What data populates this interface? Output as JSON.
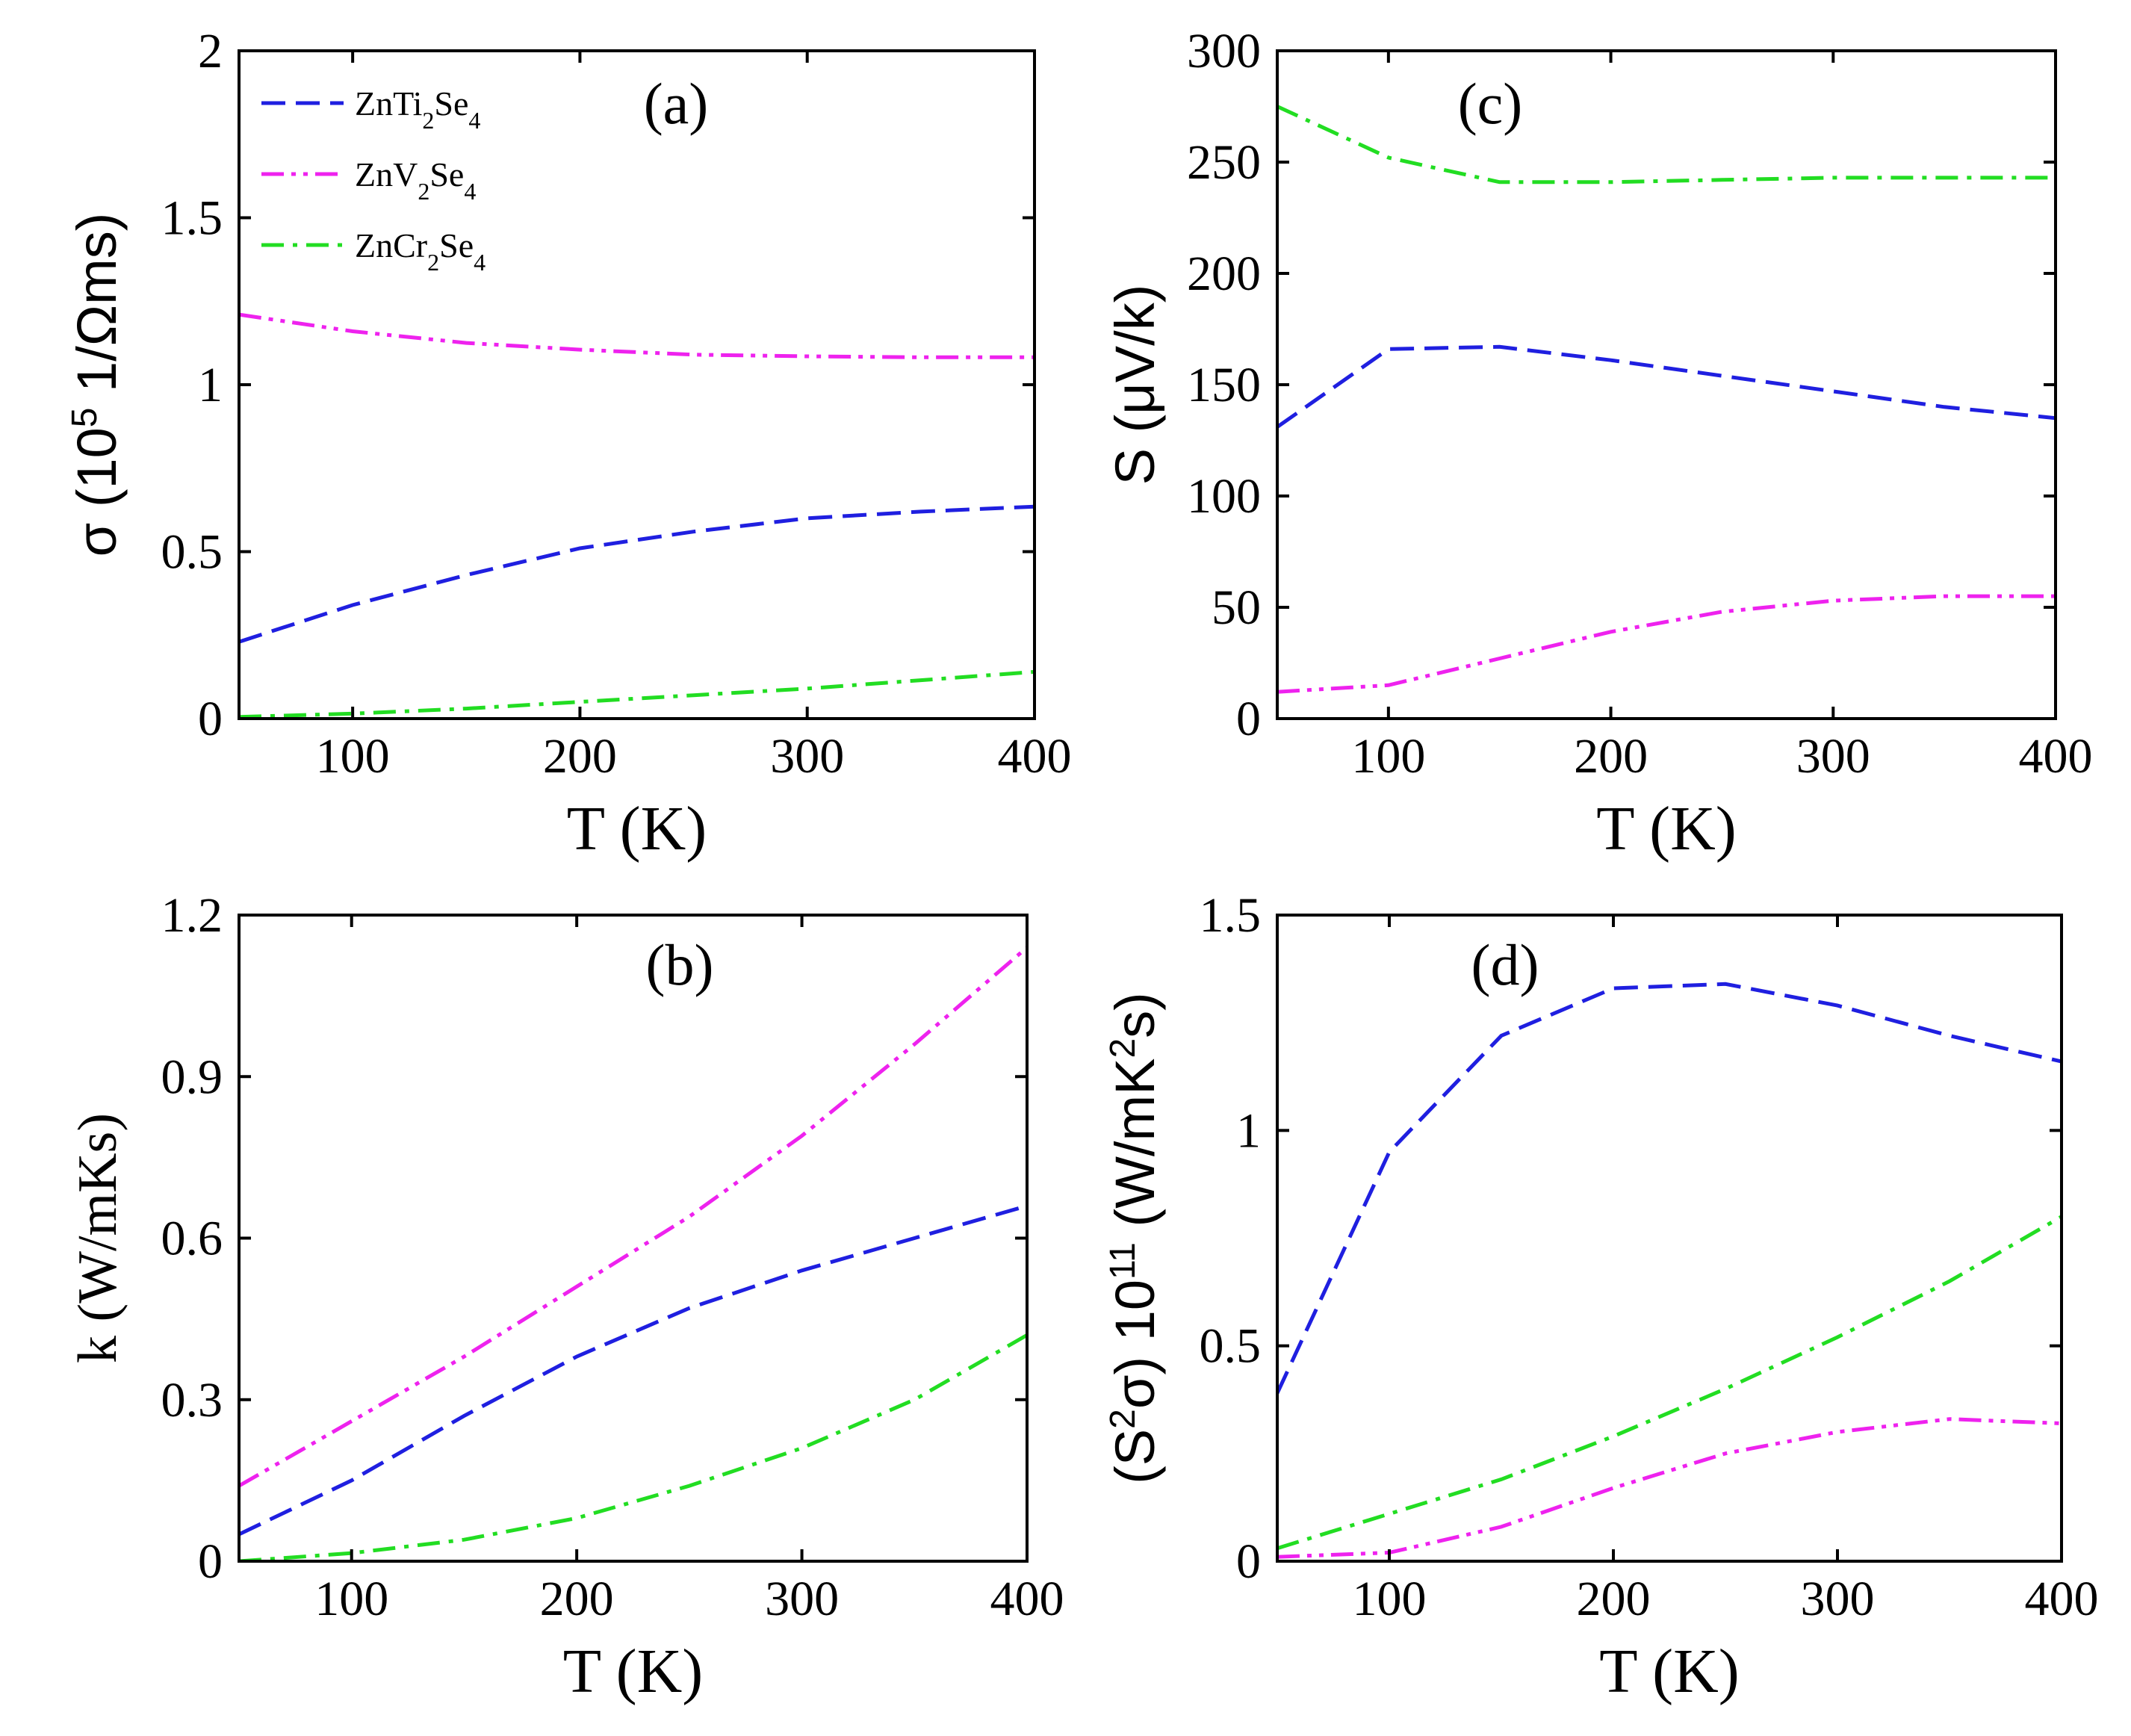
{
  "chart_data": [
    {
      "type": "line",
      "panel_label": "(a)",
      "xlabel": "T (K)",
      "ylabel": {
        "base": "σ (10",
        "exp": "5",
        "rest": " 1/Ωms)"
      },
      "xlim": [
        50,
        400
      ],
      "ylim": [
        0,
        2
      ],
      "xticks": [
        100,
        200,
        300,
        400
      ],
      "xtick_labels": [
        "100",
        "200",
        "300",
        "400"
      ],
      "yticks": [
        0,
        0.5,
        1,
        1.5,
        2
      ],
      "ytick_labels": [
        "0",
        "0.5",
        "1",
        "1.5",
        "2"
      ],
      "legend": {
        "position": "top-left",
        "entries": [
          {
            "parts": [
              "ZnTi",
              "2",
              "Se",
              "4"
            ],
            "color": "#1f1fe0",
            "style": "dash"
          },
          {
            "parts": [
              "ZnV",
              "2",
              "Se",
              "4"
            ],
            "color": "#ee22ee",
            "style": "dashdotdot"
          },
          {
            "parts": [
              "ZnCr",
              "2",
              "Se",
              "4"
            ],
            "color": "#22dd22",
            "style": "dashdot"
          }
        ]
      },
      "series": [
        {
          "name": "ZnTi2Se4",
          "color": "#1f1fe0",
          "style": "dash",
          "x": [
            50,
            100,
            150,
            200,
            250,
            300,
            350,
            400
          ],
          "y": [
            0.23,
            0.34,
            0.43,
            0.51,
            0.56,
            0.6,
            0.62,
            0.635
          ]
        },
        {
          "name": "ZnV2Se4",
          "color": "#ee22ee",
          "style": "dashdotdot",
          "x": [
            50,
            100,
            150,
            200,
            250,
            300,
            350,
            400
          ],
          "y": [
            1.21,
            1.16,
            1.125,
            1.105,
            1.09,
            1.085,
            1.082,
            1.082
          ]
        },
        {
          "name": "ZnCr2Se4",
          "color": "#22dd22",
          "style": "dashdot",
          "x": [
            50,
            100,
            150,
            200,
            250,
            300,
            350,
            400
          ],
          "y": [
            0.005,
            0.015,
            0.03,
            0.05,
            0.07,
            0.09,
            0.115,
            0.14
          ]
        }
      ]
    },
    {
      "type": "line",
      "panel_label": "(b)",
      "xlabel": "T (K)",
      "ylabel": {
        "base": "k (W/mKs)",
        "exp": "",
        "rest": ""
      },
      "xlim": [
        50,
        400
      ],
      "ylim": [
        0,
        1.2
      ],
      "xticks": [
        100,
        200,
        300,
        400
      ],
      "xtick_labels": [
        "100",
        "200",
        "300",
        "400"
      ],
      "yticks": [
        0,
        0.3,
        0.6,
        0.9,
        1.2
      ],
      "ytick_labels": [
        "0",
        "0.3",
        "0.6",
        "0.9",
        "1.2"
      ],
      "series": [
        {
          "name": "ZnTi2Se4",
          "color": "#1f1fe0",
          "style": "dash",
          "x": [
            50,
            100,
            150,
            200,
            250,
            300,
            350,
            400
          ],
          "y": [
            0.05,
            0.15,
            0.27,
            0.38,
            0.47,
            0.54,
            0.6,
            0.66
          ]
        },
        {
          "name": "ZnV2Se4",
          "color": "#ee22ee",
          "style": "dashdotdot",
          "x": [
            50,
            100,
            150,
            200,
            250,
            300,
            350,
            400
          ],
          "y": [
            0.14,
            0.26,
            0.38,
            0.51,
            0.64,
            0.79,
            0.96,
            1.14
          ]
        },
        {
          "name": "ZnCr2Se4",
          "color": "#22dd22",
          "style": "dashdot",
          "x": [
            50,
            100,
            150,
            200,
            250,
            300,
            350,
            400
          ],
          "y": [
            0.0,
            0.015,
            0.04,
            0.08,
            0.14,
            0.21,
            0.3,
            0.42
          ]
        }
      ]
    },
    {
      "type": "line",
      "panel_label": "(c)",
      "xlabel": "T (K)",
      "ylabel": {
        "base": "S (μV/k)",
        "exp": "",
        "rest": ""
      },
      "xlim": [
        50,
        400
      ],
      "ylim": [
        0,
        300
      ],
      "xticks": [
        100,
        200,
        300,
        400
      ],
      "xtick_labels": [
        "100",
        "200",
        "300",
        "400"
      ],
      "yticks": [
        0,
        50,
        100,
        150,
        200,
        250,
        300
      ],
      "ytick_labels": [
        "0",
        "50",
        "100",
        "150",
        "200",
        "250",
        "300"
      ],
      "series": [
        {
          "name": "ZnTi2Se4",
          "color": "#1f1fe0",
          "style": "dash",
          "x": [
            50,
            100,
            150,
            200,
            250,
            300,
            350,
            400
          ],
          "y": [
            131,
            166,
            167,
            161,
            154,
            147,
            140,
            135
          ]
        },
        {
          "name": "ZnV2Se4",
          "color": "#ee22ee",
          "style": "dashdotdot",
          "x": [
            50,
            100,
            150,
            200,
            250,
            300,
            350,
            400
          ],
          "y": [
            12,
            15,
            27,
            39,
            48,
            53,
            55,
            55
          ]
        },
        {
          "name": "ZnCr2Se4",
          "color": "#22dd22",
          "style": "dashdot",
          "x": [
            50,
            100,
            150,
            200,
            250,
            300,
            350,
            400
          ],
          "y": [
            275,
            252,
            241,
            241,
            242,
            243,
            243,
            243
          ]
        }
      ]
    },
    {
      "type": "line",
      "panel_label": "(d)",
      "xlabel": "T (K)",
      "ylabel": {
        "base": "(S",
        "exp": "2",
        "rest": "σ) 10",
        "exp2": "11",
        "rest2": " (W/mK",
        "exp3": "2",
        "rest3": "s)"
      },
      "xlim": [
        50,
        400
      ],
      "ylim": [
        0,
        1.5
      ],
      "xticks": [
        100,
        200,
        300,
        400
      ],
      "xtick_labels": [
        "100",
        "200",
        "300",
        "400"
      ],
      "yticks": [
        0,
        0.5,
        1,
        1.5
      ],
      "ytick_labels": [
        "0",
        "0.5",
        "1",
        "1.5"
      ],
      "series": [
        {
          "name": "ZnTi2Se4",
          "color": "#1f1fe0",
          "style": "dash",
          "x": [
            50,
            100,
            150,
            200,
            250,
            300,
            350,
            400
          ],
          "y": [
            0.39,
            0.95,
            1.22,
            1.33,
            1.34,
            1.29,
            1.22,
            1.16
          ]
        },
        {
          "name": "ZnV2Se4",
          "color": "#ee22ee",
          "style": "dashdotdot",
          "x": [
            50,
            100,
            150,
            200,
            250,
            300,
            350,
            400
          ],
          "y": [
            0.01,
            0.02,
            0.08,
            0.17,
            0.25,
            0.3,
            0.33,
            0.32
          ]
        },
        {
          "name": "ZnCr2Se4",
          "color": "#22dd22",
          "style": "dashdot",
          "x": [
            50,
            100,
            150,
            200,
            250,
            300,
            350,
            400
          ],
          "y": [
            0.03,
            0.11,
            0.19,
            0.29,
            0.4,
            0.52,
            0.65,
            0.8
          ]
        }
      ]
    }
  ]
}
